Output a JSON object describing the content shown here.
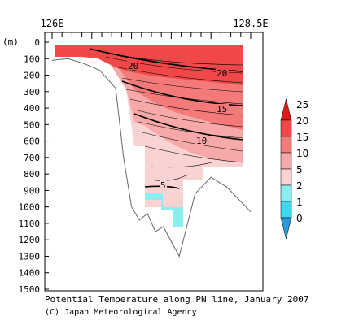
{
  "caption": {
    "title": "Potential Temperature along PN line, January 2007",
    "credit": "(C) Japan Meteorological Agency"
  },
  "chart_data": {
    "type": "contour-section",
    "x_axis": {
      "labels": [
        "126E",
        "128.5E"
      ],
      "range": [
        126.0,
        128.5
      ]
    },
    "y_axis": {
      "unit_label": "(m)",
      "range": [
        0,
        1500
      ],
      "reversed": true,
      "ticks": [
        0,
        100,
        200,
        300,
        400,
        500,
        600,
        700,
        800,
        900,
        1000,
        1100,
        1200,
        1300,
        1400,
        1500
      ]
    },
    "legend": {
      "placement": "right",
      "levels": [
        "25",
        "20",
        "15",
        "10",
        "5",
        "2",
        "1",
        "0"
      ],
      "colors": [
        "#de1a1a",
        "#f04848",
        "#f47a7a",
        "#f7a9a9",
        "#f9d2d2",
        "#88eef0",
        "#40d6ee",
        "#2a9ad6"
      ]
    },
    "contour_labels": [
      "20",
      "20",
      "15",
      "10",
      "5"
    ],
    "bottom_profile": {
      "lon": [
        126.0,
        126.2,
        126.4,
        126.6,
        126.8,
        126.9,
        127.0,
        127.1,
        127.2,
        127.3,
        127.4,
        127.6,
        127.8,
        128.0,
        128.2,
        128.5
      ],
      "depth": [
        110,
        100,
        130,
        170,
        280,
        700,
        1000,
        1080,
        1040,
        1150,
        1120,
        1300,
        920,
        820,
        880,
        1030
      ]
    }
  }
}
